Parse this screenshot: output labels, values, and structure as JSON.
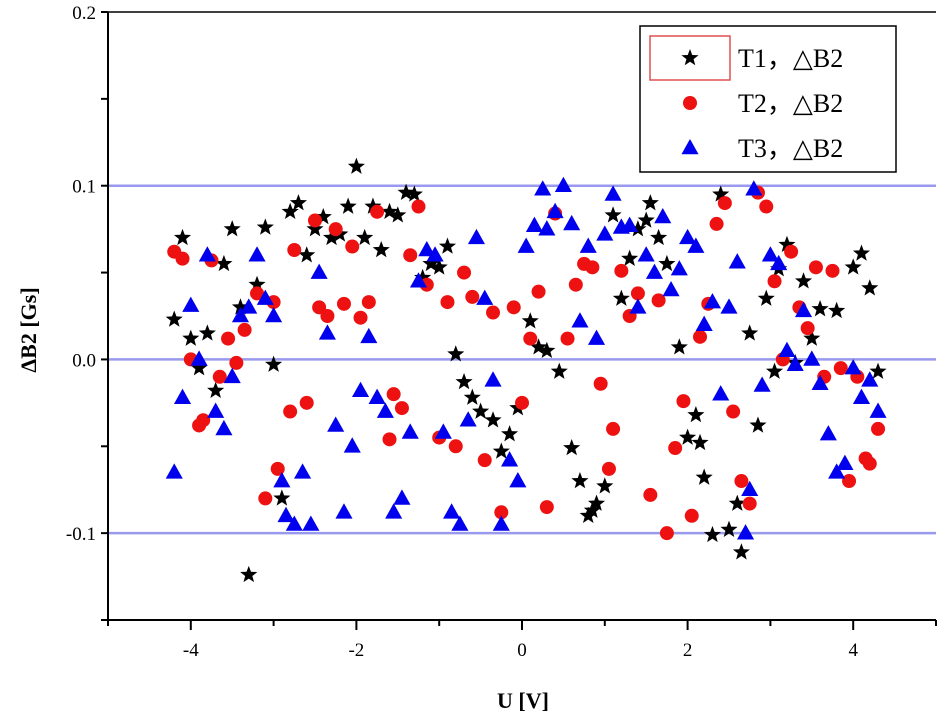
{
  "chart_data": {
    "type": "scatter",
    "title": "",
    "xlabel": "U [V]",
    "ylabel": "ΔB2 [Gs]",
    "xlim": [
      -5,
      5
    ],
    "ylim": [
      -0.15,
      0.2
    ],
    "xticks": [
      -4,
      -2,
      0,
      2,
      4
    ],
    "xtick_labels": [
      "-4",
      "-2",
      "0",
      "2",
      "4"
    ],
    "yticks": [
      -0.1,
      0.0,
      0.1,
      0.2
    ],
    "ytick_labels": [
      "-0.1",
      "0.0",
      "0.1",
      "0.2"
    ],
    "reference_lines": [
      0.1,
      0.0,
      -0.1
    ],
    "reference_line_color": "#9999ee",
    "grid": false,
    "legend_position": "top-right",
    "series": [
      {
        "name": "T1，△B2",
        "marker": "star",
        "color": "#000000",
        "points": [
          [
            -4.2,
            0.023
          ],
          [
            -4.1,
            0.07
          ],
          [
            -4.0,
            0.012
          ],
          [
            -3.9,
            -0.005
          ],
          [
            -3.8,
            0.015
          ],
          [
            -3.7,
            -0.018
          ],
          [
            -3.6,
            0.055
          ],
          [
            -3.5,
            0.075
          ],
          [
            -3.4,
            0.03
          ],
          [
            -3.3,
            -0.124
          ],
          [
            -3.2,
            0.043
          ],
          [
            -3.1,
            0.076
          ],
          [
            -3.0,
            -0.003
          ],
          [
            -2.9,
            -0.08
          ],
          [
            -2.8,
            0.085
          ],
          [
            -2.7,
            0.09
          ],
          [
            -2.6,
            0.06
          ],
          [
            -2.5,
            0.075
          ],
          [
            -2.4,
            0.082
          ],
          [
            -2.3,
            0.07
          ],
          [
            -2.2,
            0.072
          ],
          [
            -2.1,
            0.088
          ],
          [
            -2.0,
            0.111
          ],
          [
            -1.9,
            0.07
          ],
          [
            -1.8,
            0.088
          ],
          [
            -1.7,
            0.063
          ],
          [
            -1.6,
            0.085
          ],
          [
            -1.5,
            0.083
          ],
          [
            -1.4,
            0.096
          ],
          [
            -1.3,
            0.095
          ],
          [
            -1.2,
            0.047
          ],
          [
            -1.1,
            0.055
          ],
          [
            -1.0,
            0.053
          ],
          [
            -0.9,
            0.065
          ],
          [
            -0.8,
            0.003
          ],
          [
            -0.7,
            -0.013
          ],
          [
            -0.6,
            -0.022
          ],
          [
            -0.5,
            -0.03
          ],
          [
            -0.35,
            -0.035
          ],
          [
            -0.25,
            -0.053
          ],
          [
            -0.15,
            -0.043
          ],
          [
            -0.05,
            -0.028
          ],
          [
            0.1,
            0.022
          ],
          [
            0.2,
            0.007
          ],
          [
            0.3,
            0.005
          ],
          [
            0.45,
            -0.007
          ],
          [
            0.6,
            -0.051
          ],
          [
            0.7,
            -0.07
          ],
          [
            0.8,
            -0.09
          ],
          [
            0.85,
            -0.087
          ],
          [
            0.9,
            -0.083
          ],
          [
            1.0,
            -0.073
          ],
          [
            1.1,
            0.083
          ],
          [
            1.2,
            0.035
          ],
          [
            1.3,
            0.058
          ],
          [
            1.4,
            0.075
          ],
          [
            1.5,
            0.08
          ],
          [
            1.55,
            0.09
          ],
          [
            1.65,
            0.07
          ],
          [
            1.75,
            0.055
          ],
          [
            1.9,
            0.007
          ],
          [
            2.0,
            -0.045
          ],
          [
            2.1,
            -0.032
          ],
          [
            2.15,
            -0.048
          ],
          [
            2.2,
            -0.068
          ],
          [
            2.3,
            -0.101
          ],
          [
            2.4,
            0.095
          ],
          [
            2.5,
            -0.098
          ],
          [
            2.6,
            -0.083
          ],
          [
            2.65,
            -0.111
          ],
          [
            2.75,
            0.015
          ],
          [
            2.85,
            -0.038
          ],
          [
            2.95,
            0.035
          ],
          [
            3.05,
            -0.007
          ],
          [
            3.1,
            0.052
          ],
          [
            3.2,
            0.066
          ],
          [
            3.3,
            -0.002
          ],
          [
            3.4,
            0.045
          ],
          [
            3.5,
            0.012
          ],
          [
            3.6,
            0.029
          ],
          [
            3.8,
            0.028
          ],
          [
            4.0,
            0.053
          ],
          [
            4.1,
            0.061
          ],
          [
            4.2,
            0.041
          ],
          [
            4.3,
            -0.007
          ]
        ]
      },
      {
        "name": "T2，△B2",
        "marker": "circle",
        "color": "#ee1111",
        "points": [
          [
            -4.2,
            0.062
          ],
          [
            -4.1,
            0.058
          ],
          [
            -4.0,
            0.0
          ],
          [
            -3.9,
            -0.038
          ],
          [
            -3.85,
            -0.035
          ],
          [
            -3.75,
            0.057
          ],
          [
            -3.65,
            -0.01
          ],
          [
            -3.55,
            0.012
          ],
          [
            -3.45,
            -0.002
          ],
          [
            -3.35,
            0.017
          ],
          [
            -3.2,
            0.038
          ],
          [
            -3.1,
            -0.08
          ],
          [
            -3.0,
            0.033
          ],
          [
            -2.95,
            -0.063
          ],
          [
            -2.8,
            -0.03
          ],
          [
            -2.75,
            0.063
          ],
          [
            -2.6,
            -0.025
          ],
          [
            -2.5,
            0.08
          ],
          [
            -2.45,
            0.03
          ],
          [
            -2.35,
            0.025
          ],
          [
            -2.25,
            0.075
          ],
          [
            -2.15,
            0.032
          ],
          [
            -2.05,
            0.065
          ],
          [
            -1.95,
            0.024
          ],
          [
            -1.85,
            0.033
          ],
          [
            -1.75,
            0.085
          ],
          [
            -1.6,
            -0.046
          ],
          [
            -1.55,
            -0.02
          ],
          [
            -1.45,
            -0.028
          ],
          [
            -1.35,
            0.06
          ],
          [
            -1.25,
            0.088
          ],
          [
            -1.15,
            0.043
          ],
          [
            -1.0,
            -0.045
          ],
          [
            -0.9,
            0.033
          ],
          [
            -0.8,
            -0.05
          ],
          [
            -0.7,
            0.05
          ],
          [
            -0.6,
            0.036
          ],
          [
            -0.45,
            -0.058
          ],
          [
            -0.35,
            0.027
          ],
          [
            -0.25,
            -0.088
          ],
          [
            -0.1,
            0.03
          ],
          [
            0.0,
            -0.025
          ],
          [
            0.1,
            0.012
          ],
          [
            0.2,
            0.039
          ],
          [
            0.3,
            -0.085
          ],
          [
            0.4,
            0.084
          ],
          [
            0.55,
            0.012
          ],
          [
            0.65,
            0.043
          ],
          [
            0.75,
            0.055
          ],
          [
            0.85,
            0.053
          ],
          [
            0.95,
            -0.014
          ],
          [
            1.05,
            -0.063
          ],
          [
            1.1,
            -0.04
          ],
          [
            1.2,
            0.051
          ],
          [
            1.3,
            0.025
          ],
          [
            1.4,
            0.038
          ],
          [
            1.55,
            -0.078
          ],
          [
            1.65,
            0.034
          ],
          [
            1.75,
            -0.1
          ],
          [
            1.85,
            -0.051
          ],
          [
            1.95,
            -0.024
          ],
          [
            2.05,
            -0.09
          ],
          [
            2.15,
            0.013
          ],
          [
            2.25,
            0.032
          ],
          [
            2.35,
            0.078
          ],
          [
            2.45,
            0.09
          ],
          [
            2.55,
            -0.03
          ],
          [
            2.65,
            -0.07
          ],
          [
            2.75,
            -0.083
          ],
          [
            2.85,
            0.096
          ],
          [
            2.95,
            0.088
          ],
          [
            3.05,
            0.045
          ],
          [
            3.15,
            0.0
          ],
          [
            3.25,
            0.062
          ],
          [
            3.35,
            0.03
          ],
          [
            3.45,
            0.018
          ],
          [
            3.55,
            0.053
          ],
          [
            3.65,
            -0.01
          ],
          [
            3.75,
            0.051
          ],
          [
            3.85,
            -0.005
          ],
          [
            3.95,
            -0.07
          ],
          [
            4.05,
            -0.01
          ],
          [
            4.15,
            -0.057
          ],
          [
            4.2,
            -0.06
          ],
          [
            4.3,
            -0.04
          ]
        ]
      },
      {
        "name": "T3，△B2",
        "marker": "triangle",
        "color": "#0000ee",
        "points": [
          [
            -4.2,
            -0.065
          ],
          [
            -4.1,
            -0.022
          ],
          [
            -4.0,
            0.031
          ],
          [
            -3.9,
            0.0
          ],
          [
            -3.8,
            0.06
          ],
          [
            -3.7,
            -0.03
          ],
          [
            -3.6,
            -0.04
          ],
          [
            -3.5,
            -0.01
          ],
          [
            -3.4,
            0.025
          ],
          [
            -3.3,
            0.03
          ],
          [
            -3.2,
            0.06
          ],
          [
            -3.1,
            0.035
          ],
          [
            -3.0,
            0.025
          ],
          [
            -2.9,
            -0.07
          ],
          [
            -2.85,
            -0.09
          ],
          [
            -2.75,
            -0.095
          ],
          [
            -2.65,
            -0.065
          ],
          [
            -2.55,
            -0.095
          ],
          [
            -2.45,
            0.05
          ],
          [
            -2.35,
            0.015
          ],
          [
            -2.25,
            -0.038
          ],
          [
            -2.15,
            -0.088
          ],
          [
            -2.05,
            -0.05
          ],
          [
            -1.95,
            -0.018
          ],
          [
            -1.85,
            0.013
          ],
          [
            -1.75,
            -0.022
          ],
          [
            -1.65,
            -0.03
          ],
          [
            -1.55,
            -0.088
          ],
          [
            -1.45,
            -0.08
          ],
          [
            -1.35,
            -0.042
          ],
          [
            -1.25,
            0.045
          ],
          [
            -1.15,
            0.063
          ],
          [
            -1.05,
            0.06
          ],
          [
            -0.95,
            -0.042
          ],
          [
            -0.85,
            -0.088
          ],
          [
            -0.75,
            -0.095
          ],
          [
            -0.65,
            -0.035
          ],
          [
            -0.55,
            0.07
          ],
          [
            -0.45,
            0.035
          ],
          [
            -0.35,
            -0.012
          ],
          [
            -0.25,
            -0.095
          ],
          [
            -0.15,
            -0.058
          ],
          [
            -0.05,
            -0.07
          ],
          [
            0.05,
            0.065
          ],
          [
            0.15,
            0.077
          ],
          [
            0.25,
            0.098
          ],
          [
            0.3,
            0.075
          ],
          [
            0.4,
            0.085
          ],
          [
            0.5,
            0.1
          ],
          [
            0.6,
            0.078
          ],
          [
            0.7,
            0.022
          ],
          [
            0.8,
            0.065
          ],
          [
            0.9,
            0.012
          ],
          [
            1.0,
            0.072
          ],
          [
            1.1,
            0.095
          ],
          [
            1.2,
            0.076
          ],
          [
            1.3,
            0.077
          ],
          [
            1.4,
            0.03
          ],
          [
            1.5,
            0.06
          ],
          [
            1.6,
            0.05
          ],
          [
            1.7,
            0.082
          ],
          [
            1.8,
            0.04
          ],
          [
            1.9,
            0.052
          ],
          [
            2.0,
            0.07
          ],
          [
            2.1,
            0.065
          ],
          [
            2.2,
            0.02
          ],
          [
            2.3,
            0.033
          ],
          [
            2.4,
            -0.02
          ],
          [
            2.5,
            0.03
          ],
          [
            2.6,
            0.056
          ],
          [
            2.7,
            -0.1
          ],
          [
            2.75,
            -0.075
          ],
          [
            2.8,
            0.098
          ],
          [
            2.9,
            -0.015
          ],
          [
            3.0,
            0.06
          ],
          [
            3.1,
            0.055
          ],
          [
            3.2,
            0.005
          ],
          [
            3.3,
            -0.003
          ],
          [
            3.4,
            0.028
          ],
          [
            3.5,
            0.0
          ],
          [
            3.6,
            -0.014
          ],
          [
            3.7,
            -0.043
          ],
          [
            3.8,
            -0.065
          ],
          [
            3.9,
            -0.06
          ],
          [
            4.0,
            -0.005
          ],
          [
            4.1,
            -0.022
          ],
          [
            4.2,
            -0.012
          ],
          [
            4.3,
            -0.03
          ]
        ]
      }
    ]
  }
}
